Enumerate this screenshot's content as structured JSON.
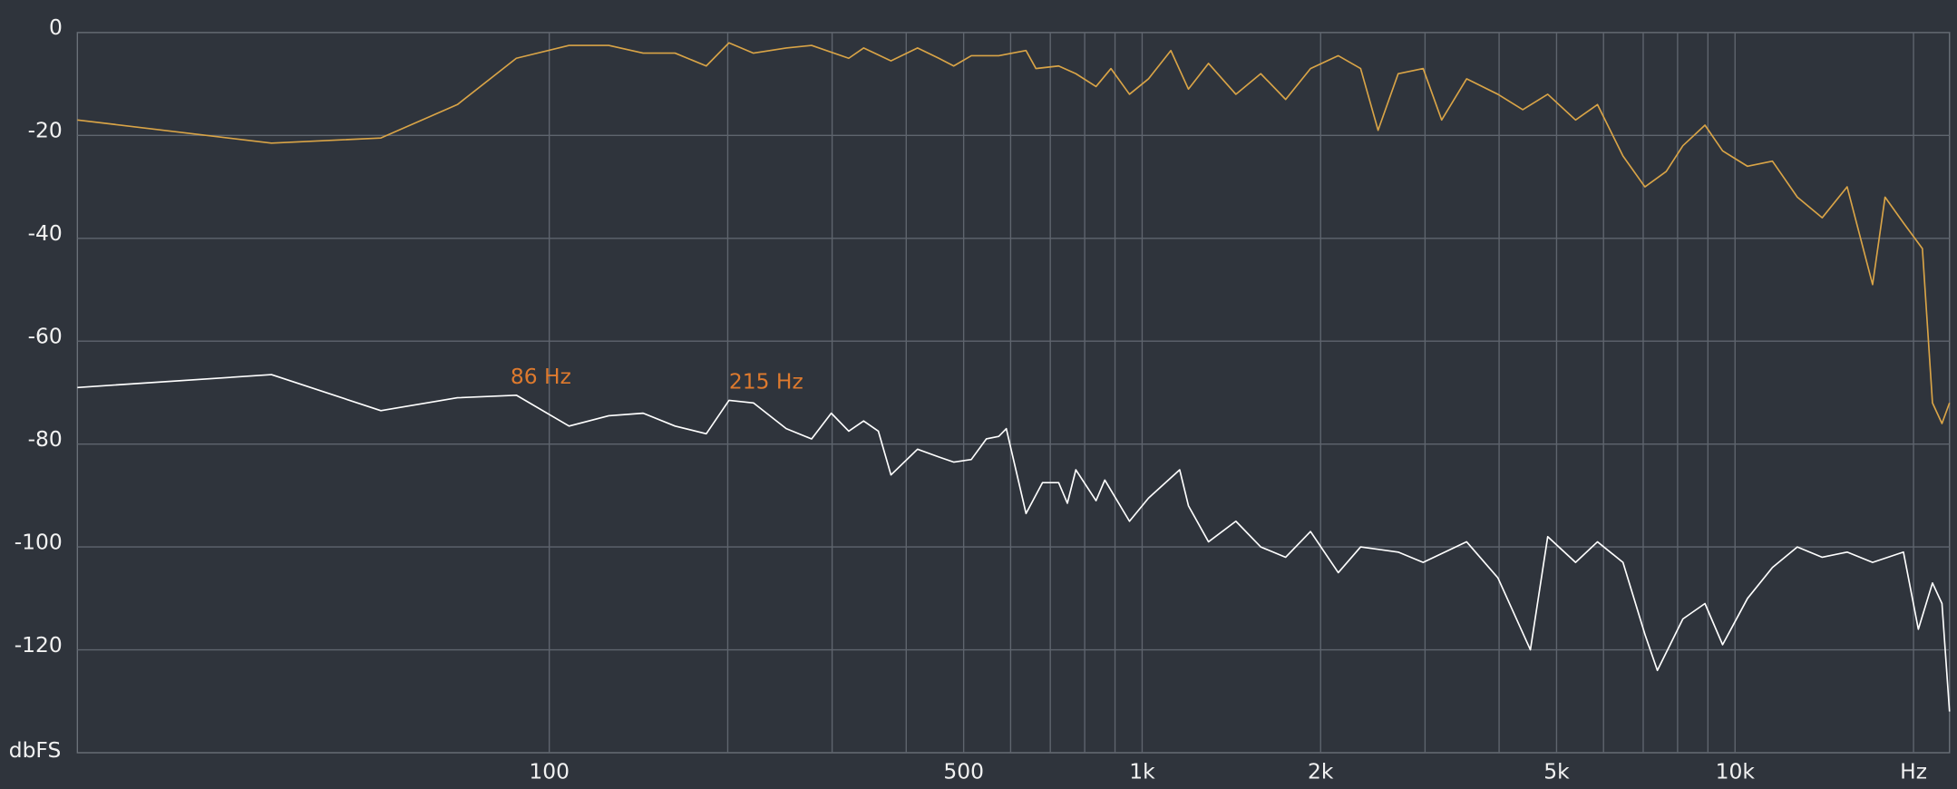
{
  "chart_data": {
    "type": "line",
    "ylabel": "dbFS",
    "log_x": true,
    "xlim": [
      16,
      23000
    ],
    "ylim": [
      -140,
      0
    ],
    "xticks": [
      100,
      500,
      {
        "value": 1000,
        "label": "1k"
      },
      {
        "value": 2000,
        "label": "2k"
      },
      {
        "value": 5000,
        "label": "5k"
      },
      {
        "value": 10000,
        "label": "10k"
      },
      {
        "value": 20000,
        "label": "Hz"
      }
    ],
    "xgrid": [
      100,
      200,
      300,
      400,
      500,
      600,
      700,
      800,
      900,
      1000,
      2000,
      3000,
      4000,
      5000,
      6000,
      7000,
      8000,
      9000,
      10000,
      20000
    ],
    "yticks": [
      0,
      -20,
      -40,
      -60,
      -80,
      -100,
      -120
    ],
    "grid": true,
    "series": [
      {
        "color": "#d9a447",
        "x": [
          16,
          34,
          52,
          70,
          88,
          108,
          126,
          144,
          163,
          184,
          201,
          221,
          251,
          277,
          320,
          339,
          377,
          418,
          454,
          481,
          515,
          573,
          637,
          662,
          723,
          773,
          836,
          886,
          952,
          1025,
          1118,
          1197,
          1294,
          1439,
          1585,
          1746,
          1923,
          2142,
          2336,
          2500,
          2703,
          2978,
          3200,
          3526,
          3981,
          4385,
          4831,
          5383,
          5861,
          6471,
          7047,
          7655,
          8166,
          8897,
          9528,
          10497,
          11563,
          12737,
          14030,
          15455,
          17061,
          17906,
          19232,
          20701,
          21528,
          22336,
          23000
        ],
        "values": [
          -17,
          -21.5,
          -20.5,
          -14,
          -5,
          -2.5,
          -2.5,
          -4,
          -4,
          -6.5,
          -2,
          -4,
          -3,
          -2.5,
          -5,
          -3,
          -5.5,
          -3,
          -5,
          -6.5,
          -4.5,
          -4.5,
          -3.5,
          -7,
          -6.5,
          -8,
          -10.5,
          -7,
          -12,
          -9,
          -3.5,
          -11,
          -6,
          -12,
          -8,
          -13,
          -7,
          -4.5,
          -7,
          -19,
          -8,
          -7,
          -17,
          -9,
          -12,
          -15,
          -12,
          -17,
          -14,
          -24,
          -30,
          -27,
          -22,
          -18,
          -23,
          -26,
          -25,
          -32,
          -36,
          -30,
          -49,
          -32,
          -37,
          -42,
          -72,
          -76,
          -72
        ]
      },
      {
        "color": "#ffffff",
        "x": [
          16,
          34,
          52,
          70,
          88,
          108,
          126,
          144,
          163,
          184,
          201,
          221,
          251,
          277,
          299,
          320,
          339,
          359,
          377,
          418,
          454,
          481,
          515,
          546,
          573,
          590,
          637,
          679,
          723,
          748,
          773,
          836,
          865,
          952,
          1025,
          1157,
          1197,
          1294,
          1439,
          1585,
          1746,
          1923,
          2142,
          2336,
          2703,
          2978,
          3526,
          3981,
          4517,
          4831,
          5383,
          5861,
          6471,
          7047,
          7396,
          8166,
          8897,
          9528,
          10497,
          11563,
          12737,
          14030,
          15455,
          17061,
          19232,
          20378,
          21528,
          22336,
          23000
        ],
        "values": [
          -69,
          -66.5,
          -73.5,
          -71,
          -70.5,
          -76.5,
          -74.5,
          -74,
          -76.5,
          -78,
          -71.5,
          -72,
          -77,
          -79,
          -74,
          -77.5,
          -75.5,
          -77.5,
          -86,
          -81,
          -82.5,
          -83.5,
          -83,
          -79,
          -78.5,
          -77,
          -93.5,
          -87.5,
          -87.5,
          -91.5,
          -85,
          -91,
          -87,
          -95,
          -90.5,
          -85,
          -92,
          -99,
          -95,
          -100,
          -102,
          -97,
          -105,
          -100,
          -101,
          -103,
          -99,
          -106,
          -120,
          -98,
          -103,
          -99,
          -103,
          -117,
          -124,
          -114,
          -111,
          -119,
          -110,
          -104,
          -100,
          -102,
          -101,
          -103,
          -101,
          -116,
          -107,
          -111,
          -132
        ]
      }
    ],
    "annotations": [
      {
        "text": "86 Hz",
        "x": 86,
        "y": -70.5,
        "color": "#de7a2e"
      },
      {
        "text": "215 Hz",
        "x": 201,
        "y": -71.5,
        "color": "#de7a2e"
      }
    ]
  }
}
